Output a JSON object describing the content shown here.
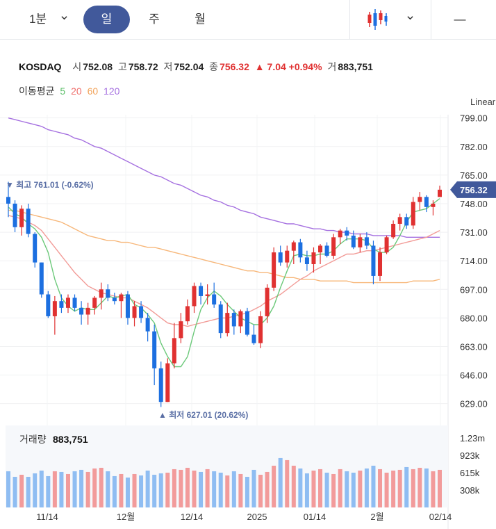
{
  "toolbar": {
    "interval_label": "1분",
    "tabs": [
      "일",
      "주",
      "월"
    ],
    "active_tab": "일",
    "minus_label": "—"
  },
  "quote": {
    "symbol": "KOSDAQ",
    "open_label": "시",
    "open": "752.08",
    "high_label": "고",
    "high": "758.72",
    "low_label": "저",
    "low": "752.04",
    "close_label": "종",
    "close": "756.32",
    "change": "▲ 7.04",
    "change_pct": "+0.94%",
    "volume_label": "거",
    "volume": "883,751"
  },
  "ma_legend": {
    "label": "이동평균",
    "periods": [
      {
        "value": "5",
        "color": "#5dbf6a"
      },
      {
        "value": "20",
        "color": "#ef6f6c"
      },
      {
        "value": "60",
        "color": "#f2a45c"
      },
      {
        "value": "120",
        "color": "#a570e0"
      }
    ]
  },
  "scale_mode": "Linear",
  "chart_data": {
    "type": "candlestick",
    "y_ticks": [
      "799.00",
      "782.00",
      "765.00",
      "748.00",
      "731.00",
      "714.00",
      "697.00",
      "680.00",
      "663.00",
      "646.00",
      "629.00"
    ],
    "ylim": [
      621,
      803
    ],
    "x_labels": [
      "11/14",
      "12월",
      "12/14",
      "2025",
      "01/14",
      "2월",
      "02/14"
    ],
    "last_price": "756.32",
    "max_annotation": "▼ 최고 761.01 (-0.62%)",
    "min_annotation": "▲ 최저 627.01 (20.62%)",
    "colors": {
      "up": "#e03131",
      "down": "#1c6fe0",
      "vol_up": "#f29b9b",
      "vol_down": "#8fbdf2",
      "price_tag": "#41599b"
    },
    "candles": [
      [
        752,
        761,
        740,
        748
      ],
      [
        748,
        750,
        731,
        734
      ],
      [
        734,
        747,
        729,
        745
      ],
      [
        745,
        748,
        728,
        730
      ],
      [
        730,
        731,
        710,
        713
      ],
      [
        713,
        713,
        692,
        694
      ],
      [
        694,
        696,
        680,
        681
      ],
      [
        681,
        693,
        670,
        690
      ],
      [
        690,
        694,
        683,
        686
      ],
      [
        686,
        694,
        683,
        692
      ],
      [
        692,
        694,
        684,
        686
      ],
      [
        686,
        690,
        676,
        682
      ],
      [
        682,
        689,
        676,
        686
      ],
      [
        686,
        693,
        682,
        692
      ],
      [
        692,
        701,
        685,
        697
      ],
      [
        697,
        700,
        690,
        692
      ],
      [
        692,
        695,
        688,
        690
      ],
      [
        690,
        695,
        680,
        694
      ],
      [
        694,
        696,
        676,
        680
      ],
      [
        680,
        690,
        675,
        687
      ],
      [
        687,
        690,
        677,
        680
      ],
      [
        680,
        683,
        666,
        672
      ],
      [
        672,
        676,
        640,
        650
      ],
      [
        650,
        654,
        627,
        630
      ],
      [
        630,
        656,
        630,
        653
      ],
      [
        653,
        677,
        650,
        668
      ],
      [
        668,
        683,
        665,
        678
      ],
      [
        678,
        691,
        676,
        687
      ],
      [
        687,
        701,
        683,
        699
      ],
      [
        699,
        701,
        688,
        693
      ],
      [
        693,
        700,
        688,
        694
      ],
      [
        694,
        701,
        686,
        688
      ],
      [
        688,
        690,
        668,
        671
      ],
      [
        671,
        689,
        669,
        683
      ],
      [
        683,
        685,
        670,
        675
      ],
      [
        675,
        685,
        671,
        684
      ],
      [
        684,
        686,
        669,
        670
      ],
      [
        670,
        676,
        664,
        665
      ],
      [
        665,
        684,
        662,
        681
      ],
      [
        681,
        700,
        677,
        698
      ],
      [
        698,
        722,
        696,
        719
      ],
      [
        719,
        723,
        711,
        713
      ],
      [
        713,
        723,
        710,
        720
      ],
      [
        720,
        726,
        712,
        725
      ],
      [
        725,
        727,
        713,
        716
      ],
      [
        716,
        720,
        708,
        712
      ],
      [
        712,
        722,
        707,
        719
      ],
      [
        719,
        724,
        712,
        723
      ],
      [
        723,
        725,
        716,
        717
      ],
      [
        717,
        730,
        715,
        728
      ],
      [
        728,
        733,
        724,
        732
      ],
      [
        732,
        734,
        726,
        729
      ],
      [
        729,
        732,
        721,
        722
      ],
      [
        722,
        730,
        719,
        728
      ],
      [
        728,
        731,
        721,
        723
      ],
      [
        723,
        726,
        700,
        705
      ],
      [
        705,
        722,
        702,
        719
      ],
      [
        719,
        729,
        718,
        728
      ],
      [
        728,
        738,
        727,
        736
      ],
      [
        736,
        742,
        732,
        740
      ],
      [
        740,
        742,
        733,
        735
      ],
      [
        735,
        752,
        733,
        749
      ],
      [
        749,
        755,
        744,
        752
      ],
      [
        752,
        753,
        743,
        746
      ],
      [
        746,
        750,
        741,
        748
      ],
      [
        752,
        758.7,
        752,
        756.3
      ]
    ],
    "volume": [
      0.52,
      0.44,
      0.47,
      0.44,
      0.49,
      0.53,
      0.45,
      0.52,
      0.51,
      0.48,
      0.52,
      0.54,
      0.51,
      0.56,
      0.57,
      0.52,
      0.45,
      0.48,
      0.43,
      0.48,
      0.46,
      0.53,
      0.47,
      0.49,
      0.5,
      0.55,
      0.54,
      0.57,
      0.53,
      0.51,
      0.55,
      0.52,
      0.5,
      0.46,
      0.52,
      0.48,
      0.44,
      0.54,
      0.47,
      0.51,
      0.6,
      0.71,
      0.68,
      0.6,
      0.56,
      0.49,
      0.53,
      0.55,
      0.5,
      0.48,
      0.55,
      0.52,
      0.5,
      0.53,
      0.56,
      0.6,
      0.55,
      0.5,
      0.53,
      0.54,
      0.58,
      0.55,
      0.57,
      0.56,
      0.52,
      0.54
    ],
    "volume_label": "거래량",
    "volume_value": "883,751",
    "volume_ticks": [
      "1.23m",
      "923k",
      "615k",
      "308k"
    ],
    "ma5": [
      746,
      742,
      740,
      736,
      733,
      728,
      719,
      703,
      692,
      687,
      684,
      686,
      685,
      685,
      689,
      693,
      692,
      693,
      694,
      688,
      686,
      682,
      677,
      665,
      657,
      651,
      651,
      657,
      672,
      685,
      692,
      696,
      693,
      688,
      684,
      680,
      678,
      676,
      676,
      680,
      687,
      698,
      708,
      717,
      718,
      717,
      717,
      718,
      718,
      720,
      724,
      727,
      727,
      727,
      726,
      721,
      719,
      719,
      722,
      729,
      737,
      743,
      744,
      745,
      748,
      751
    ],
    "ma20": [
      741,
      740,
      739,
      737,
      735,
      732,
      727,
      722,
      717,
      712,
      707,
      703,
      699,
      697,
      695,
      694,
      693,
      692,
      692,
      690,
      688,
      686,
      683,
      680,
      677,
      676,
      676,
      675,
      676,
      677,
      678,
      679,
      680,
      680,
      681,
      682,
      683,
      685,
      687,
      690,
      692,
      694,
      697,
      700,
      703,
      705,
      708,
      710,
      712,
      714,
      716,
      718,
      718,
      719,
      720,
      720,
      721,
      722,
      723,
      724,
      725,
      726,
      727,
      728,
      730,
      732
    ],
    "ma60": [
      744,
      744,
      743,
      742,
      741,
      740,
      739,
      738,
      737,
      735,
      733,
      731,
      729,
      728,
      727,
      726,
      726,
      725,
      725,
      724,
      723,
      722,
      722,
      721,
      720,
      719,
      718,
      717,
      716,
      715,
      714,
      713,
      712,
      711,
      710,
      709,
      708,
      708,
      707,
      707,
      706,
      705,
      704,
      704,
      703,
      703,
      703,
      702,
      702,
      702,
      702,
      702,
      701,
      701,
      701,
      701,
      701,
      701,
      701,
      701,
      701,
      702,
      702,
      702,
      702,
      703
    ],
    "ma120": [
      799,
      798,
      797,
      796,
      795,
      794,
      792,
      791,
      790,
      789,
      787,
      786,
      784,
      782,
      781,
      779,
      777,
      775,
      773,
      771,
      769,
      767,
      765,
      764,
      762,
      760,
      759,
      757,
      755,
      753,
      752,
      750,
      749,
      747,
      746,
      744,
      743,
      742,
      740,
      739,
      738,
      737,
      736,
      736,
      735,
      734,
      733,
      733,
      732,
      732,
      731,
      731,
      730,
      730,
      730,
      729,
      729,
      729,
      729,
      729,
      728,
      728,
      728,
      728,
      728,
      728
    ]
  }
}
